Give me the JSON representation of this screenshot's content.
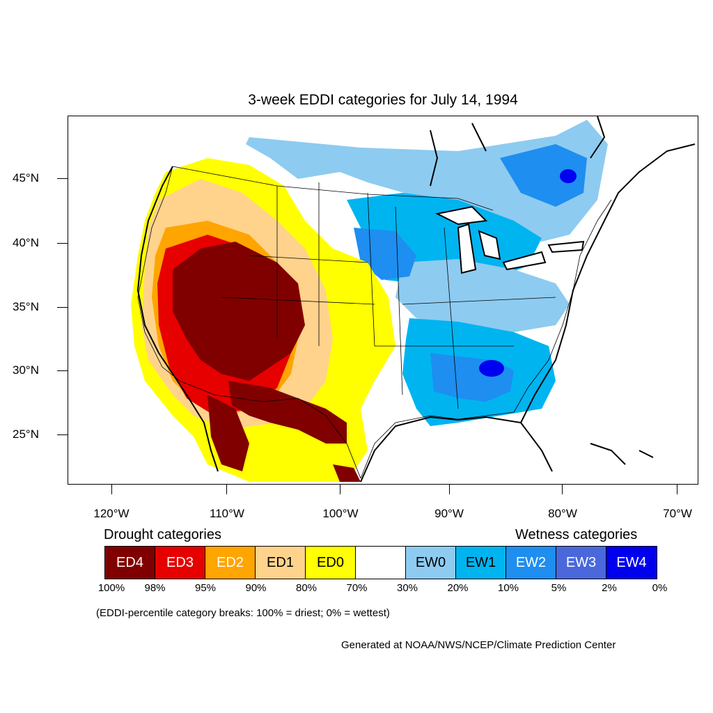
{
  "title": "3-week EDDI categories for July 14, 1994",
  "map": {
    "latitude_labels": [
      "45°N",
      "40°N",
      "35°N",
      "30°N",
      "25°N"
    ],
    "longitude_labels": [
      "120°W",
      "110°W",
      "100°W",
      "90°W",
      "80°W",
      "70°W"
    ],
    "colors": {
      "ED4": "#800000",
      "ED3": "#e0000b",
      "ED2": "#ffa300",
      "ED1": "#ffd38c",
      "ED0": "#ffff00",
      "neutral": "#ffffff",
      "EW0": "#8ecbf0",
      "EW1": "#00b4f0",
      "EW2": "#1e8ef0",
      "EW3": "#4a68dc",
      "EW4": "#0000f0"
    }
  },
  "legend": {
    "drought_heading": "Drought categories",
    "wetness_heading": "Wetness categories",
    "categories": [
      {
        "label": "ED4",
        "color": "#800000",
        "text_color": "#ffffff"
      },
      {
        "label": "ED3",
        "color": "#e60000",
        "text_color": "#ffffff"
      },
      {
        "label": "ED2",
        "color": "#ffa500",
        "text_color": "#ffffff"
      },
      {
        "label": "ED1",
        "color": "#ffd38c",
        "text_color": "#000000"
      },
      {
        "label": "ED0",
        "color": "#ffff00",
        "text_color": "#000000"
      },
      {
        "label": "",
        "color": "#ffffff",
        "text_color": "#000000"
      },
      {
        "label": "EW0",
        "color": "#8ecbf0",
        "text_color": "#000000"
      },
      {
        "label": "EW1",
        "color": "#00b4f0",
        "text_color": "#000000"
      },
      {
        "label": "EW2",
        "color": "#1e8ef0",
        "text_color": "#ffffff"
      },
      {
        "label": "EW3",
        "color": "#4a68dc",
        "text_color": "#ffffff"
      },
      {
        "label": "EW4",
        "color": "#0000f0",
        "text_color": "#ffffff"
      }
    ],
    "percentiles": [
      "100%",
      "98%",
      "95%",
      "90%",
      "80%",
      "70%",
      "30%",
      "20%",
      "10%",
      "5%",
      "2%",
      "0%"
    ]
  },
  "note": "(EDDI-percentile category breaks: 100% = driest; 0% = wettest)",
  "credit": "Generated at NOAA/NWS/NCEP/Climate Prediction Center"
}
